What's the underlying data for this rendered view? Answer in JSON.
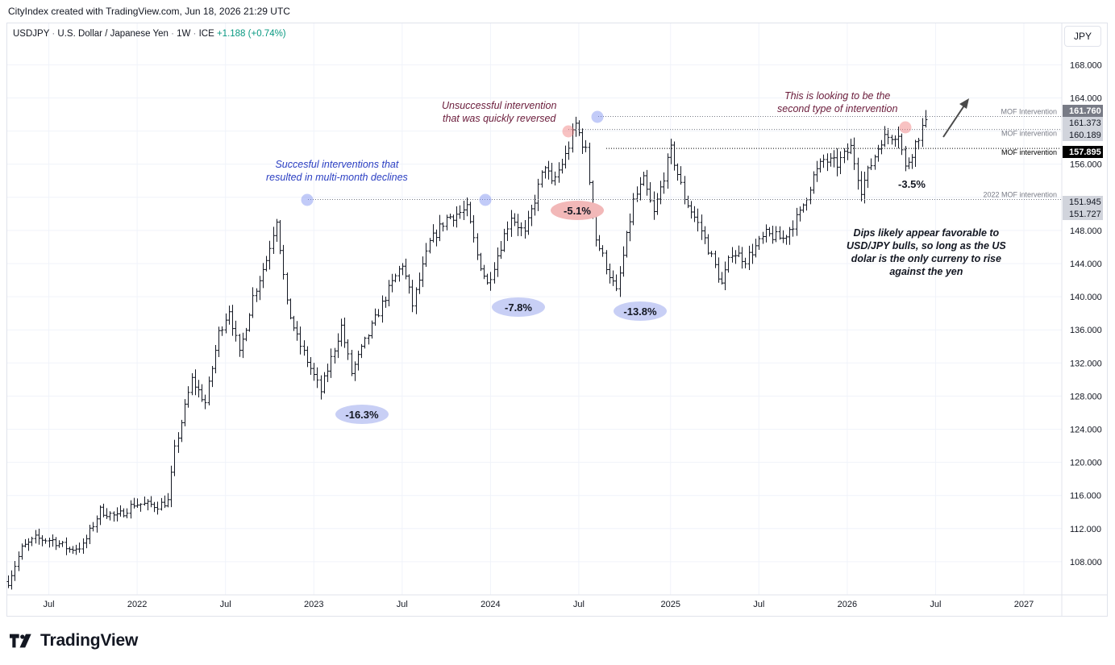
{
  "header": {
    "text": "CityIndex created with TradingView.com, Jun 18, 2026 21:29 UTC"
  },
  "legend": {
    "symbol": "USDJPY",
    "name": "U.S. Dollar / Japanese Yen",
    "interval": "1W",
    "exchange": "ICE",
    "change": "+1.188",
    "change_pct": "(+0.74%)",
    "change_color": "#089981"
  },
  "currency_button": {
    "label": "JPY"
  },
  "footer": {
    "brand": "TradingView"
  },
  "annotations": {
    "successful": [
      "Succesful interventions that",
      "resulted in multi-month declines"
    ],
    "unsuccessful": [
      "Unsuccessful intervention",
      "that was quickly reversed"
    ],
    "second_type": [
      "This is looking to be the",
      "second type of intervention"
    ],
    "dips": [
      "Dips likely appear favorable to",
      "USD/JPY bulls, so long as the US",
      "dolar is the only curreny to rise",
      "against the yen"
    ]
  },
  "chart_data": {
    "type": "ohlc",
    "interval": "weekly",
    "y_axis": {
      "ticks": [
        108,
        112,
        116,
        120,
        124,
        128,
        132,
        136,
        140,
        144,
        148,
        152,
        156,
        160,
        164,
        168
      ],
      "tick_labels": [
        "108.000",
        "112.000",
        "116.000",
        "120.000",
        "124.000",
        "128.000",
        "132.000",
        "136.000",
        "140.000",
        "144.000",
        "148.000",
        "156.000",
        "164.000",
        "168.000"
      ],
      "range": [
        104.0,
        173.0
      ]
    },
    "x_axis": {
      "tick_labels": [
        "Jul",
        "2022",
        "Jul",
        "2023",
        "Jul",
        "2024",
        "Jul",
        "2025",
        "Jul",
        "2026",
        "Jul",
        "2027"
      ]
    },
    "price_labels": [
      {
        "value": "161.760",
        "bg": "#787b86",
        "fg": "#ffffff"
      },
      {
        "value": "161.373",
        "bg": "#d1d4dc",
        "fg": "#131722"
      },
      {
        "value": "160.189",
        "bg": "#d1d4dc",
        "fg": "#131722"
      },
      {
        "value": "157.895",
        "bg": "#000000",
        "fg": "#ffffff"
      },
      {
        "value": "151.945",
        "bg": "#d1d4dc",
        "fg": "#131722"
      },
      {
        "value": "151.727",
        "bg": "#d1d4dc",
        "fg": "#131722"
      }
    ],
    "horizontal_lines": [
      {
        "price": 161.76,
        "label": "MOF Intervention",
        "color": "#787b86"
      },
      {
        "price": 160.19,
        "label": "MOF intervention",
        "color": "#787b86"
      },
      {
        "price": 157.9,
        "label": "MOF intervention",
        "color": "#000000"
      },
      {
        "price": 151.73,
        "label": "2022 MOF intervention",
        "color": "#787b86"
      }
    ],
    "pct_labels": [
      "-16.3%",
      "-7.8%",
      "-5.1%",
      "-13.8%",
      "-3.5%"
    ],
    "series_anchors": [
      {
        "date": "2021-04-12",
        "close": 105.6
      },
      {
        "date": "2021-05-10",
        "close": 109.6
      },
      {
        "date": "2021-06-07",
        "close": 110.8
      },
      {
        "date": "2021-07-12",
        "close": 110.6
      },
      {
        "date": "2021-08-16",
        "close": 109.5
      },
      {
        "date": "2021-09-13",
        "close": 109.9
      },
      {
        "date": "2021-10-18",
        "close": 114.2
      },
      {
        "date": "2021-11-22",
        "close": 113.4
      },
      {
        "date": "2021-12-27",
        "close": 115.0
      },
      {
        "date": "2022-02-14",
        "close": 114.8
      },
      {
        "date": "2022-03-07",
        "close": 115.3
      },
      {
        "date": "2022-03-21",
        "close": 121.5
      },
      {
        "date": "2022-04-25",
        "close": 130.0
      },
      {
        "date": "2022-05-23",
        "close": 127.2
      },
      {
        "date": "2022-06-20",
        "close": 135.6
      },
      {
        "date": "2022-07-11",
        "close": 138.5
      },
      {
        "date": "2022-08-01",
        "close": 133.0
      },
      {
        "date": "2022-08-29",
        "close": 140.0
      },
      {
        "date": "2022-09-26",
        "close": 144.5
      },
      {
        "date": "2022-10-17",
        "close": 149.5
      },
      {
        "date": "2022-11-07",
        "close": 139.0
      },
      {
        "date": "2022-11-28",
        "close": 135.0
      },
      {
        "date": "2023-01-16",
        "close": 128.6
      },
      {
        "date": "2023-02-27",
        "close": 136.4
      },
      {
        "date": "2023-03-20",
        "close": 130.8
      },
      {
        "date": "2023-04-17",
        "close": 134.5
      },
      {
        "date": "2023-05-29",
        "close": 140.0
      },
      {
        "date": "2023-07-03",
        "close": 144.0
      },
      {
        "date": "2023-07-24",
        "close": 139.0
      },
      {
        "date": "2023-08-28",
        "close": 146.5
      },
      {
        "date": "2023-10-02",
        "close": 149.5
      },
      {
        "date": "2023-11-13",
        "close": 150.5
      },
      {
        "date": "2023-12-04",
        "close": 145.0
      },
      {
        "date": "2023-12-25",
        "close": 141.5
      },
      {
        "date": "2024-02-12",
        "close": 149.8
      },
      {
        "date": "2024-03-11",
        "close": 147.5
      },
      {
        "date": "2024-04-22",
        "close": 156.0
      },
      {
        "date": "2024-05-06",
        "close": 153.5
      },
      {
        "date": "2024-06-03",
        "close": 157.0
      },
      {
        "date": "2024-06-24",
        "close": 160.8
      },
      {
        "date": "2024-07-15",
        "close": 157.5
      },
      {
        "date": "2024-08-05",
        "close": 147.0
      },
      {
        "date": "2024-09-16",
        "close": 140.5
      },
      {
        "date": "2024-10-21",
        "close": 151.5
      },
      {
        "date": "2024-11-11",
        "close": 154.0
      },
      {
        "date": "2024-12-02",
        "close": 150.0
      },
      {
        "date": "2025-01-06",
        "close": 157.7
      },
      {
        "date": "2025-02-03",
        "close": 152.0
      },
      {
        "date": "2025-03-10",
        "close": 148.0
      },
      {
        "date": "2025-04-21",
        "close": 141.5
      },
      {
        "date": "2025-05-12",
        "close": 145.5
      },
      {
        "date": "2025-06-09",
        "close": 144.5
      },
      {
        "date": "2025-07-21",
        "close": 147.5
      },
      {
        "date": "2025-08-25",
        "close": 147.0
      },
      {
        "date": "2025-09-29",
        "close": 150.0
      },
      {
        "date": "2025-10-27",
        "close": 154.5
      },
      {
        "date": "2025-11-17",
        "close": 156.5
      },
      {
        "date": "2025-12-15",
        "close": 156.0
      },
      {
        "date": "2026-01-12",
        "close": 158.0
      },
      {
        "date": "2026-02-02",
        "close": 153.0
      },
      {
        "date": "2026-02-23",
        "close": 156.0
      },
      {
        "date": "2026-03-16",
        "close": 159.0
      },
      {
        "date": "2026-04-20",
        "close": 159.8
      },
      {
        "date": "2026-05-04",
        "close": 155.5
      },
      {
        "date": "2026-05-25",
        "close": 158.5
      },
      {
        "date": "2026-06-15",
        "close": 161.37
      }
    ],
    "grid": true,
    "legend_position": "top-left"
  }
}
